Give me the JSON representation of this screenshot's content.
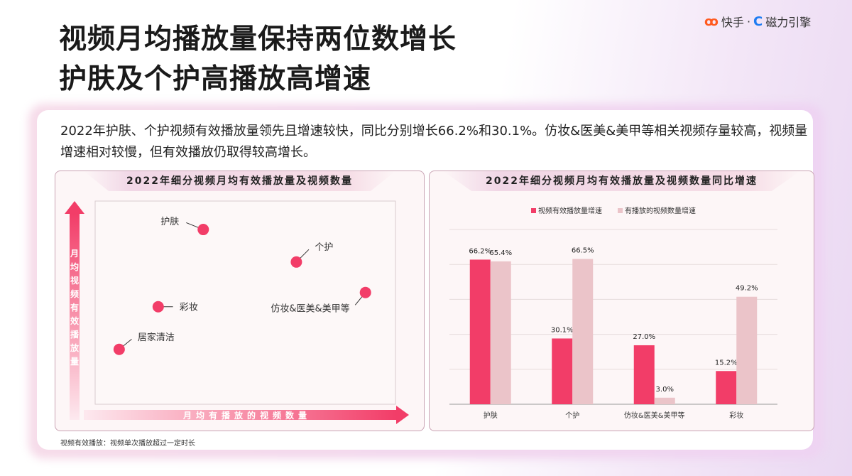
{
  "header": {
    "title_line1": "视频月均播放量保持两位数增长",
    "title_line2": "护肤及个护高播放高增速",
    "logo_kuaishou": "快手",
    "logo_sep": "·",
    "logo_cili": "磁力引擎"
  },
  "summary": "2022年护肤、个护视频有效播放量领先且增速较快，同比分别增长66.2%和30.1%。仿妆&医美&美甲等相关视频存量较高，视频量增速相对较慢，但有效播放仍取得较高增长。",
  "footnote": "视频有效播放：视频单次播放超过一定时长",
  "colors": {
    "primary": "#f23d68",
    "secondary": "#ebc4c9"
  },
  "chart_data": [
    {
      "type": "scatter",
      "title": "2022年细分视频月均有效播放量及视频数量",
      "xlabel": "月均有播放的视频数量",
      "ylabel": "月均视频有效播放量",
      "xlim": [
        0,
        100
      ],
      "ylim": [
        0,
        100
      ],
      "points": [
        {
          "label": "护肤",
          "x": 36,
          "y": 86
        },
        {
          "label": "个护",
          "x": 67,
          "y": 70
        },
        {
          "label": "仿妆&医美&美甲等",
          "x": 90,
          "y": 55
        },
        {
          "label": "彩妆",
          "x": 21,
          "y": 48
        },
        {
          "label": "居家清洁",
          "x": 8,
          "y": 27
        }
      ]
    },
    {
      "type": "bar",
      "title": "2022年细分视频月均有效播放量及视频数量同比增速",
      "categories": [
        "护肤",
        "个护",
        "仿妆&医美&美甲等",
        "彩妆"
      ],
      "ylim": [
        0,
        80
      ],
      "grid": true,
      "legend": "top",
      "series": [
        {
          "name": "视频有效播放量增速",
          "values": [
            66.2,
            30.1,
            27.0,
            15.2
          ],
          "labels": [
            "66.2%",
            "30.1%",
            "27.0%",
            "15.2%"
          ]
        },
        {
          "name": "有播放的视频数量增速",
          "values": [
            65.4,
            66.5,
            3.0,
            49.2
          ],
          "labels": [
            "65.4%",
            "66.5%",
            "3.0%",
            "49.2%"
          ]
        }
      ]
    }
  ]
}
